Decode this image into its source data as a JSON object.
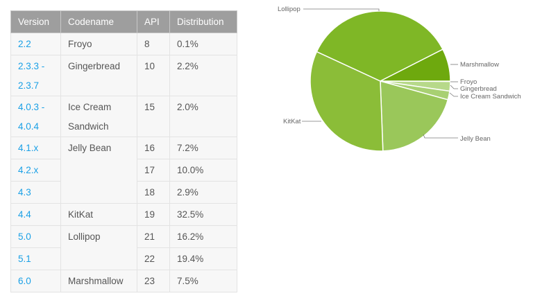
{
  "table": {
    "headers": [
      "Version",
      "Codename",
      "API",
      "Distribution"
    ],
    "rows": [
      {
        "version": "2.2",
        "codename": "Froyo",
        "span": 1,
        "api": "8",
        "dist": "0.1%"
      },
      {
        "version": "2.3.3 - 2.3.7",
        "codename": "Gingerbread",
        "span": 1,
        "api": "10",
        "dist": "2.2%"
      },
      {
        "version": "4.0.3 - 4.0.4",
        "codename": "Ice Cream Sandwich",
        "span": 1,
        "api": "15",
        "dist": "2.0%"
      },
      {
        "version": "4.1.x",
        "codename": "Jelly Bean",
        "span": 3,
        "api": "16",
        "dist": "7.2%"
      },
      {
        "version": "4.2.x",
        "codename": null,
        "span": 0,
        "api": "17",
        "dist": "10.0%"
      },
      {
        "version": "4.3",
        "codename": null,
        "span": 0,
        "api": "18",
        "dist": "2.9%"
      },
      {
        "version": "4.4",
        "codename": "KitKat",
        "span": 1,
        "api": "19",
        "dist": "32.5%"
      },
      {
        "version": "5.0",
        "codename": "Lollipop",
        "span": 2,
        "api": "21",
        "dist": "16.2%"
      },
      {
        "version": "5.1",
        "codename": null,
        "span": 0,
        "api": "22",
        "dist": "19.4%"
      },
      {
        "version": "6.0",
        "codename": "Marshmallow",
        "span": 1,
        "api": "23",
        "dist": "7.5%"
      }
    ]
  },
  "chart_data": {
    "type": "pie",
    "start": "3 o'clock, clockwise",
    "slices": [
      {
        "label": "Froyo",
        "value": 0.1,
        "color": "#c5e1a0"
      },
      {
        "label": "Gingerbread",
        "value": 2.2,
        "color": "#b7d98a"
      },
      {
        "label": "Ice Cream Sandwich",
        "value": 2.0,
        "color": "#a8d072"
      },
      {
        "label": "Jelly Bean",
        "value": 20.1,
        "color": "#9ac75a"
      },
      {
        "label": "KitKat",
        "value": 32.5,
        "color": "#8bbd38"
      },
      {
        "label": "Lollipop",
        "value": 35.6,
        "color": "#7fb726"
      },
      {
        "label": "Marshmallow",
        "value": 7.5,
        "color": "#6ea90e"
      }
    ]
  }
}
